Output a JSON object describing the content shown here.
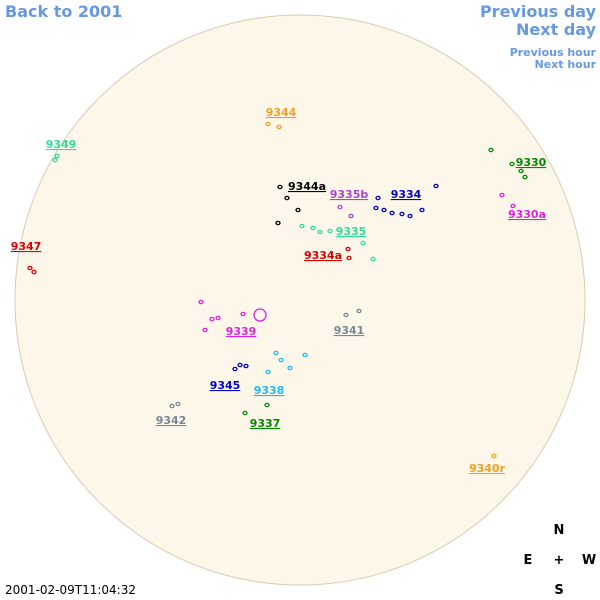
{
  "navigation": {
    "back": "Back to 2001",
    "previous_day": "Previous day",
    "next_day": "Next day",
    "previous_hour": "Previous hour",
    "next_hour": "Next hour"
  },
  "regions": [
    {
      "label": "9344",
      "color": "#f0a020"
    },
    {
      "label": "9349",
      "color": "#33dd99"
    },
    {
      "label": "9330",
      "color": "#008800"
    },
    {
      "label": "9344a",
      "color": "#000000"
    },
    {
      "label": "9335b",
      "color": "#aa44cc"
    },
    {
      "label": "9334",
      "color": "#0000cc"
    },
    {
      "label": "9330a",
      "color": "#dd22dd"
    },
    {
      "label": "9335",
      "color": "#33dd99"
    },
    {
      "label": "9347",
      "color": "#dd0000"
    },
    {
      "label": "9334a",
      "color": "#dd0000"
    },
    {
      "label": "9339",
      "color": "#dd22dd"
    },
    {
      "label": "9341",
      "color": "#778899"
    },
    {
      "label": "9345",
      "color": "#0000cc"
    },
    {
      "label": "9338",
      "color": "#22bbee"
    },
    {
      "label": "9342",
      "color": "#778899"
    },
    {
      "label": "9337",
      "color": "#008800"
    },
    {
      "label": "9340r",
      "color": "#f0a020"
    }
  ],
  "compass": {
    "north": "N",
    "east": "E",
    "center": "+",
    "west": "W",
    "south": "S"
  },
  "timestamp": "2001-02-09T11:04:32"
}
